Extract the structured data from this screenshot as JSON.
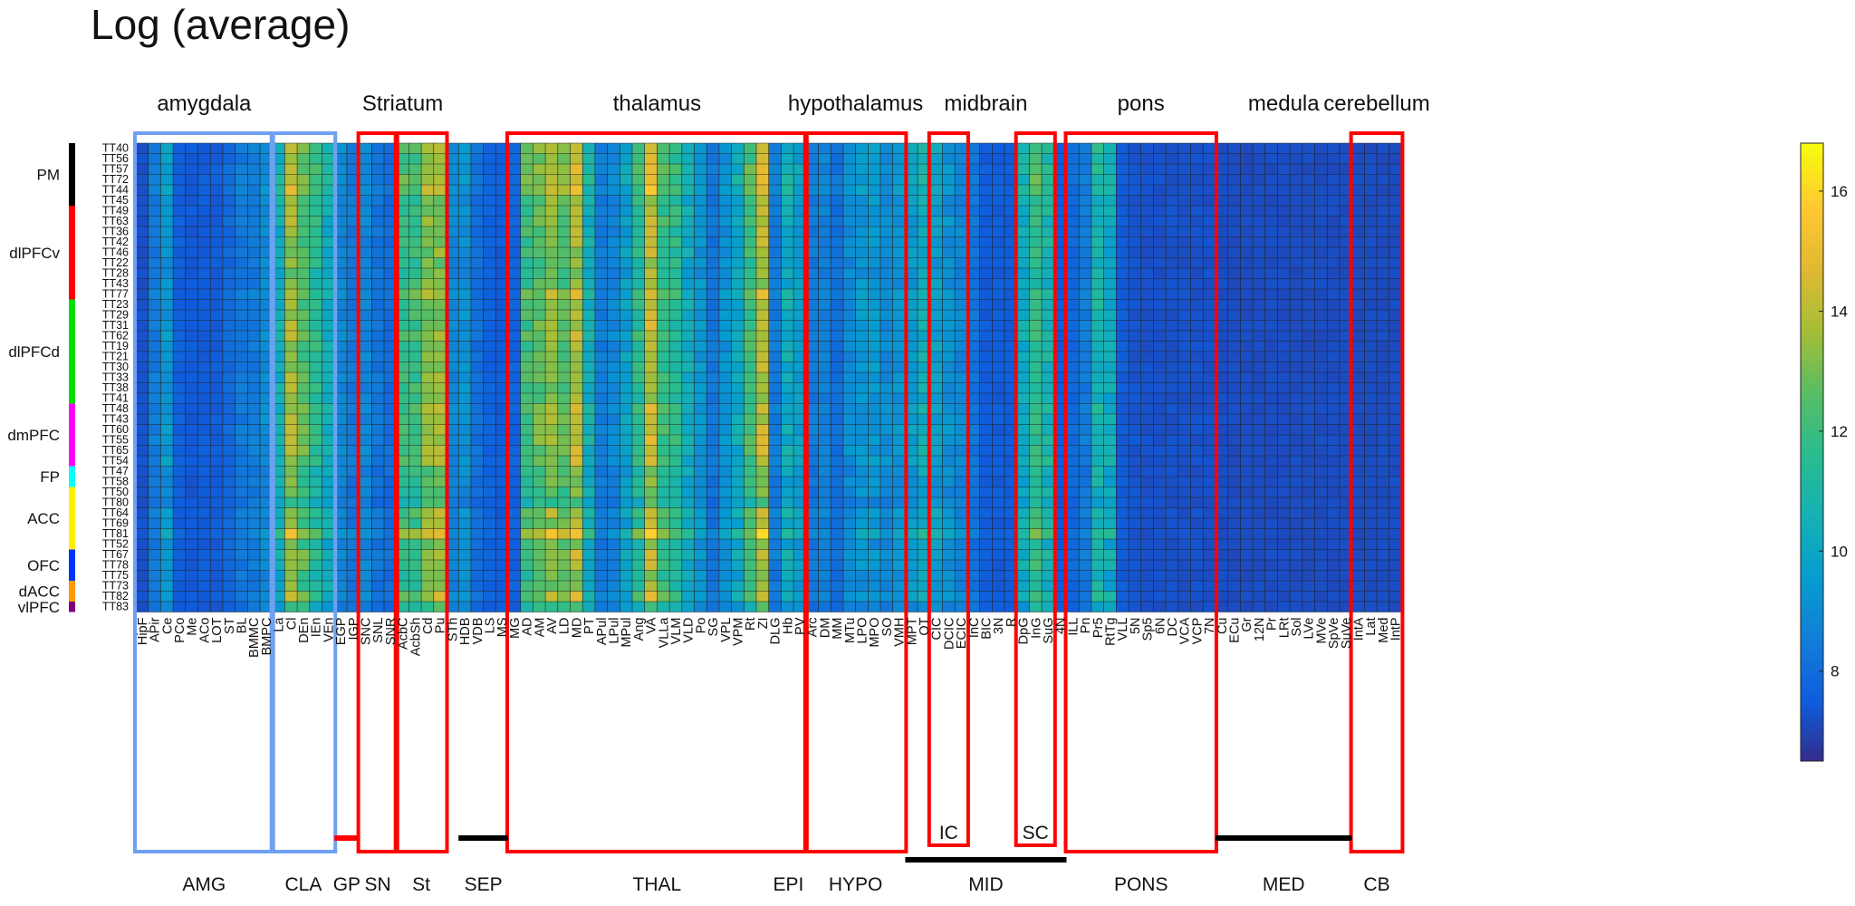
{
  "title": "Log (average)",
  "chart_data": {
    "type": "heatmap",
    "title": "Log (average)",
    "colorbar": {
      "ticks": [
        8,
        10,
        12,
        14,
        16
      ],
      "range": [
        6.5,
        16.8
      ],
      "colormap": "parula"
    },
    "rows": [
      "TT40",
      "TT56",
      "TT57",
      "TT72",
      "TT44",
      "TT45",
      "TT49",
      "TT63",
      "TT36",
      "TT42",
      "TT46",
      "TT22",
      "TT28",
      "TT43",
      "TT77",
      "TT23",
      "TT29",
      "TT31",
      "TT62",
      "TT19",
      "TT21",
      "TT30",
      "TT33",
      "TT38",
      "TT41",
      "TT48",
      "TT43",
      "TT60",
      "TT55",
      "TT65",
      "TT54",
      "TT47",
      "TT58",
      "TT50",
      "TT80",
      "TT64",
      "TT69",
      "TT81",
      "TT52",
      "TT67",
      "TT78",
      "TT75",
      "TT73",
      "TT82",
      "TT83"
    ],
    "row_groups": [
      {
        "label": "PM",
        "start": 0,
        "end": 5,
        "color": "#000000"
      },
      {
        "label": "dlPFCv",
        "start": 6,
        "end": 14,
        "color": "#ff0000"
      },
      {
        "label": "dlPFCd",
        "start": 15,
        "end": 24,
        "color": "#00dd00"
      },
      {
        "label": "dmPFC",
        "start": 25,
        "end": 30,
        "color": "#ff00ff"
      },
      {
        "label": "FP",
        "start": 31,
        "end": 32,
        "color": "#00ffff"
      },
      {
        "label": "ACC",
        "start": 33,
        "end": 38,
        "color": "#ffee00"
      },
      {
        "label": "OFC",
        "start": 39,
        "end": 41,
        "color": "#0033ff"
      },
      {
        "label": "dACC",
        "start": 42,
        "end": 43,
        "color": "#ff9900"
      },
      {
        "label": "vlPFC",
        "start": 44,
        "end": 44,
        "color": "#800080"
      }
    ],
    "columns": [
      "HipF",
      "APir",
      "Ce",
      "PCo",
      "Me",
      "ACo",
      "LOT",
      "ST",
      "BL",
      "BMMC",
      "BMPC",
      "La",
      "Cl",
      "DEn",
      "IEn",
      "VEn",
      "EGP",
      "IGP",
      "SNC",
      "SNL",
      "SNR",
      "AcbC",
      "AcbSh",
      "Cd",
      "Pu",
      "STh",
      "HDB",
      "VDB",
      "LS",
      "MS",
      "MG",
      "AD",
      "AM",
      "AV",
      "LD",
      "MD",
      "PT",
      "APul",
      "LPul",
      "MPul",
      "Ang",
      "VA",
      "VLLa",
      "VLM",
      "VLD",
      "Po",
      "SG",
      "VPL",
      "VPM",
      "Rt",
      "ZI",
      "DLG",
      "Hb",
      "PV",
      "Arc",
      "DM",
      "MM",
      "MTu",
      "LPO",
      "MPO",
      "SO",
      "VMH",
      "MPT",
      "OT",
      "CIC",
      "DCIC",
      "ECIC",
      "InC",
      "BIC",
      "3N",
      "R",
      "DpG",
      "InG",
      "SuG",
      "4N",
      "ILL",
      "Pn",
      "Pr5",
      "RtTg",
      "VLL",
      "5N",
      "Sp5",
      "6N",
      "DC",
      "VCA",
      "VCP",
      "7N",
      "Cu",
      "ECu",
      "Gr",
      "12N",
      "Pr",
      "LRt",
      "Sol",
      "LVe",
      "MVe",
      "SpVe",
      "SuVe",
      "IntA",
      "Lat",
      "Med",
      "IntP"
    ],
    "top_groups": [
      {
        "label": "amygdala",
        "start": 0,
        "end": 10
      },
      {
        "label": "Striatum",
        "start": 18,
        "end": 24
      },
      {
        "label": "thalamus",
        "start": 30,
        "end": 53
      },
      {
        "label": "hypothalamus",
        "start": 54,
        "end": 61
      },
      {
        "label": "midbrain",
        "start": 62,
        "end": 74
      },
      {
        "label": "pons",
        "start": 75,
        "end": 86
      },
      {
        "label": "medula",
        "start": 87,
        "end": 97
      },
      {
        "label": "cerebellum",
        "start": 98,
        "end": 101
      }
    ],
    "bottom_groups": [
      {
        "label": "AMG",
        "start": 0,
        "end": 10,
        "color": "#6fa0f2"
      },
      {
        "label": "CLA",
        "start": 11,
        "end": 15,
        "color": "#6fa0f2"
      },
      {
        "label": "GP",
        "start": 16,
        "end": 17,
        "color": "#ff0000"
      },
      {
        "label": "SN",
        "start": 18,
        "end": 20,
        "color": "#ff0000"
      },
      {
        "label": "St",
        "start": 21,
        "end": 24,
        "color": "#ff0000"
      },
      {
        "label": "SEP",
        "start": 26,
        "end": 29,
        "color": "#000000"
      },
      {
        "label": "THAL",
        "start": 30,
        "end": 53,
        "color": "#ff0000"
      },
      {
        "label": "EPI",
        "start": 52,
        "end": 53,
        "color": "#ff0000"
      },
      {
        "label": "HYPO",
        "start": 54,
        "end": 61,
        "color": "#ff0000"
      },
      {
        "label": "MID",
        "start": 62,
        "end": 74,
        "color": "#000000"
      },
      {
        "label": "PONS",
        "start": 75,
        "end": 86,
        "color": "#ff0000"
      },
      {
        "label": "MED",
        "start": 87,
        "end": 97,
        "color": "#000000"
      },
      {
        "label": "CB",
        "start": 98,
        "end": 101,
        "color": "#ff0000"
      }
    ],
    "sub_labels": [
      {
        "label": "IC",
        "start": 64,
        "end": 66
      },
      {
        "label": "SC",
        "start": 71,
        "end": 73
      }
    ],
    "highlight_boxes": [
      {
        "name": "amygdala-box",
        "start": 0,
        "end": 10,
        "color": "#6fa0f2"
      },
      {
        "name": "claustrum-box",
        "start": 11,
        "end": 15,
        "color": "#6fa0f2"
      },
      {
        "name": "substantia-nigra-box",
        "start": 18,
        "end": 20,
        "color": "#ff0000"
      },
      {
        "name": "striatum-box",
        "start": 21,
        "end": 24,
        "color": "#ff0000"
      },
      {
        "name": "thalamus-box",
        "start": 30,
        "end": 53,
        "color": "#ff0000"
      },
      {
        "name": "hypothalamus-box",
        "start": 54,
        "end": 61,
        "color": "#ff0000"
      },
      {
        "name": "inferior-colliculus-box",
        "start": 64,
        "end": 66,
        "color": "#ff0000"
      },
      {
        "name": "superior-colliculus-box",
        "start": 71,
        "end": 73,
        "color": "#ff0000"
      },
      {
        "name": "pons-box",
        "start": 75,
        "end": 86,
        "color": "#ff0000"
      },
      {
        "name": "cerebellum-box",
        "start": 98,
        "end": 101,
        "color": "#ff0000"
      }
    ],
    "base_value": 7.2,
    "column_profile": [
      7.3,
      8.6,
      9.6,
      7.7,
      7.5,
      7.6,
      7.6,
      8.0,
      8.5,
      8.6,
      9.2,
      10.8,
      14.2,
      13.0,
      12.0,
      10.8,
      9.0,
      8.5,
      9.0,
      8.4,
      8.2,
      12.4,
      12.5,
      13.8,
      14.0,
      9.0,
      9.4,
      8.2,
      7.8,
      7.6,
      7.8,
      12.6,
      13.2,
      14.0,
      13.2,
      14.4,
      10.8,
      8.6,
      9.0,
      10.0,
      12.0,
      14.8,
      12.4,
      12.0,
      10.6,
      9.6,
      8.4,
      9.4,
      10.4,
      12.6,
      14.6,
      8.6,
      10.6,
      10.0,
      8.6,
      8.8,
      8.2,
      9.2,
      9.6,
      9.6,
      9.2,
      9.4,
      9.8,
      10.6,
      10.0,
      9.4,
      9.0,
      8.4,
      7.6,
      7.6,
      7.6,
      10.6,
      12.2,
      11.2,
      7.6,
      8.0,
      8.6,
      11.2,
      10.6,
      7.6,
      7.4,
      7.3,
      7.3,
      7.3,
      7.3,
      7.3,
      7.3,
      7.2,
      7.2,
      7.2,
      7.2,
      7.2,
      7.2,
      7.2,
      7.2,
      7.2,
      7.2,
      7.2,
      7.2,
      7.2,
      7.2,
      7.2
    ],
    "row_profile": [
      1.0,
      0.95,
      1.0,
      1.05,
      1.05,
      0.88,
      0.92,
      0.92,
      0.9,
      0.9,
      0.88,
      0.86,
      0.84,
      0.86,
      1.0,
      0.92,
      0.9,
      0.92,
      0.95,
      0.9,
      0.9,
      0.9,
      0.92,
      0.9,
      0.86,
      0.95,
      0.92,
      0.95,
      0.95,
      0.95,
      0.95,
      0.82,
      0.84,
      0.8,
      0.72,
      0.95,
      0.9,
      1.15,
      0.82,
      0.95,
      0.9,
      0.82,
      0.85,
      1.0,
      0.72
    ]
  }
}
